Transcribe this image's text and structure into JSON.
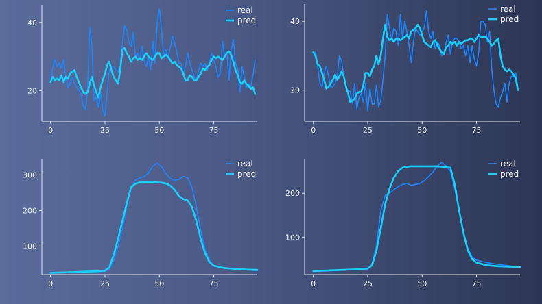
{
  "colors": {
    "real": "#1c86ff",
    "pred": "#1ad0ff",
    "axis": "#e8ecf6"
  },
  "chart_data": [
    {
      "type": "line",
      "xlim": [
        -4,
        95
      ],
      "ylim": [
        11,
        45
      ],
      "xticks": [
        0,
        25,
        50,
        75
      ],
      "yticks": [
        20,
        40
      ],
      "legend": {
        "position": "top-right",
        "entries": [
          "real",
          "pred"
        ]
      },
      "grid": false,
      "series": [
        {
          "name": "real",
          "values": [
            22.5,
            27,
            29,
            27,
            28,
            26.5,
            29,
            24,
            21,
            22,
            24,
            22,
            21,
            20,
            19,
            15.5,
            14.5,
            20,
            38.5,
            34,
            17,
            18,
            15,
            19.5,
            14.5,
            12.5,
            19.5,
            26,
            27,
            27,
            26,
            25.5,
            27,
            34,
            39,
            38,
            34,
            33,
            37,
            30,
            31,
            29,
            33,
            29,
            27,
            30,
            26,
            34.5,
            28,
            40,
            44,
            38,
            30,
            32,
            29.5,
            32.5,
            36,
            34,
            31.5,
            28,
            28,
            24.5,
            27,
            31,
            28,
            26,
            24,
            23,
            26,
            28,
            27,
            28,
            26,
            28,
            31,
            29,
            27,
            24,
            25,
            34.5,
            30,
            31,
            23,
            32,
            35,
            28,
            26.5,
            19.5,
            27,
            24,
            21,
            22,
            21,
            24.5,
            29
          ]
        },
        {
          "name": "pred",
          "values": [
            22.5,
            24,
            23,
            23.5,
            23,
            24.5,
            22.5,
            24,
            23.5,
            25,
            25.5,
            26,
            24,
            22.5,
            21,
            19.5,
            19,
            19.5,
            22,
            24,
            21.5,
            19.5,
            18,
            21,
            23,
            25,
            27.5,
            28.5,
            26,
            24,
            23,
            22,
            26,
            32,
            32.5,
            31,
            30,
            28.5,
            29.5,
            30,
            29,
            29.5,
            29,
            30,
            31,
            30,
            29.5,
            29,
            30,
            31,
            31,
            29.5,
            30,
            30.5,
            30,
            29,
            28,
            28.5,
            27.5,
            27,
            26.5,
            25,
            23,
            23,
            24.5,
            24,
            23,
            23,
            24,
            25,
            26.5,
            26,
            27,
            27.5,
            29,
            30,
            29.5,
            30,
            29.5,
            29,
            30,
            31,
            31.5,
            30.5,
            28.5,
            26,
            24.5,
            22.5,
            22,
            23,
            22,
            21.5,
            20.5,
            21,
            19
          ]
        }
      ]
    },
    {
      "type": "line",
      "xlim": [
        -4,
        95
      ],
      "ylim": [
        11,
        45
      ],
      "xticks": [
        0,
        25,
        50,
        75
      ],
      "yticks": [
        20,
        40
      ],
      "legend": {
        "position": "top-right",
        "entries": [
          "real",
          "pred"
        ]
      },
      "grid": false,
      "series": [
        {
          "name": "real",
          "values": [
            31,
            31,
            27,
            22,
            21,
            25,
            27,
            24,
            21,
            21,
            22,
            24,
            30,
            28.5,
            24,
            21,
            20,
            19.5,
            16,
            22,
            14.5,
            18,
            19,
            16.5,
            22,
            14,
            20.5,
            16,
            16,
            21.5,
            15,
            17,
            23,
            30,
            42,
            38,
            34.5,
            38,
            37,
            33,
            42,
            35,
            40,
            37,
            33,
            28,
            34,
            38,
            37,
            36,
            37,
            38,
            43,
            37,
            35,
            37,
            32,
            34,
            33,
            30,
            30.5,
            34,
            36,
            30.5,
            34,
            35,
            35,
            34,
            32,
            33,
            30,
            33,
            28,
            33,
            29,
            27,
            31,
            40,
            40,
            39,
            34,
            37,
            26,
            20,
            16,
            15,
            18,
            19.5,
            22,
            16.5,
            22,
            24,
            24,
            25,
            21
          ]
        },
        {
          "name": "pred",
          "values": [
            31,
            30,
            27.5,
            27,
            25,
            23,
            20.5,
            21,
            22,
            23,
            24.5,
            23,
            24,
            25.5,
            24,
            21,
            19,
            16.5,
            17,
            17.5,
            19,
            19.5,
            19.5,
            21.5,
            25,
            25,
            24,
            26,
            27,
            30,
            27.5,
            30,
            35,
            39,
            35.5,
            34.5,
            35,
            34,
            35,
            35,
            34.5,
            35,
            35.5,
            36,
            35,
            37,
            37.5,
            38,
            39,
            38,
            36,
            34,
            33.5,
            33,
            32.5,
            34,
            34.5,
            33,
            32,
            31,
            30.5,
            32.5,
            33,
            34,
            33.5,
            34,
            33,
            34,
            33.5,
            34,
            34.5,
            34.5,
            35,
            35,
            34,
            35,
            36,
            35.5,
            35.5,
            35.5,
            35,
            34,
            33,
            33.5,
            34.5,
            35,
            30,
            27,
            26,
            25.5,
            26,
            25.5,
            24.5,
            23.5,
            20
          ]
        }
      ]
    },
    {
      "type": "line",
      "xlim": [
        -4,
        95
      ],
      "ylim": [
        20,
        345
      ],
      "xticks": [
        0,
        25,
        50,
        75
      ],
      "yticks": [
        100,
        200,
        300
      ],
      "legend": {
        "position": "top-right",
        "entries": [
          "real",
          "pred"
        ]
      },
      "grid": false,
      "series": [
        {
          "name": "real",
          "x": [
            0,
            5,
            10,
            15,
            20,
            25,
            27,
            29,
            31,
            33,
            35,
            37,
            39,
            41,
            43,
            45,
            47,
            49,
            51,
            53,
            55,
            57,
            59,
            61,
            63,
            65,
            67,
            69,
            71,
            73,
            75,
            80,
            85,
            90,
            95
          ],
          "values": [
            24,
            25,
            26,
            27,
            28,
            29,
            35,
            60,
            100,
            150,
            210,
            265,
            285,
            292,
            295,
            305,
            325,
            333,
            323,
            304,
            290,
            285,
            287,
            296,
            292,
            265,
            210,
            145,
            90,
            60,
            44,
            38,
            35,
            33,
            31
          ]
        },
        {
          "name": "pred",
          "x": [
            0,
            5,
            10,
            15,
            20,
            25,
            27,
            29,
            31,
            33,
            35,
            37,
            39,
            41,
            43,
            45,
            47,
            49,
            51,
            53,
            55,
            57,
            59,
            61,
            63,
            65,
            67,
            69,
            71,
            73,
            75,
            80,
            85,
            90,
            95
          ],
          "values": [
            25,
            26,
            27,
            28,
            29,
            31,
            40,
            75,
            120,
            170,
            220,
            265,
            275,
            279,
            280,
            280,
            280,
            279,
            278,
            276,
            270,
            258,
            240,
            232,
            228,
            210,
            170,
            120,
            80,
            55,
            45,
            38,
            36,
            34,
            33
          ]
        }
      ]
    },
    {
      "type": "line",
      "xlim": [
        -4,
        95
      ],
      "ylim": [
        15,
        278
      ],
      "xticks": [
        0,
        25,
        50,
        75
      ],
      "yticks": [
        100,
        200
      ],
      "legend": {
        "position": "top-right",
        "entries": [
          "real",
          "pred"
        ]
      },
      "grid": false,
      "series": [
        {
          "name": "real",
          "x": [
            0,
            5,
            10,
            15,
            20,
            25,
            27,
            29,
            31,
            33,
            35,
            37,
            39,
            41,
            43,
            45,
            47,
            49,
            51,
            53,
            55,
            57,
            59,
            61,
            63,
            65,
            67,
            69,
            71,
            73,
            75,
            80,
            85,
            90,
            95
          ],
          "values": [
            22,
            23,
            24,
            25,
            26,
            27,
            40,
            80,
            160,
            195,
            200,
            208,
            215,
            220,
            222,
            218,
            220,
            222,
            228,
            238,
            248,
            262,
            270,
            262,
            250,
            210,
            160,
            110,
            75,
            55,
            48,
            42,
            38,
            35,
            32
          ]
        },
        {
          "name": "pred",
          "x": [
            0,
            5,
            10,
            15,
            20,
            25,
            27,
            29,
            31,
            33,
            35,
            37,
            39,
            41,
            43,
            45,
            47,
            49,
            51,
            53,
            55,
            57,
            59,
            61,
            63,
            65,
            67,
            69,
            71,
            73,
            75,
            80,
            85,
            90,
            95
          ],
          "values": [
            23,
            24,
            25,
            26,
            27,
            29,
            36,
            70,
            120,
            175,
            210,
            235,
            250,
            258,
            260,
            261,
            261,
            261,
            261,
            261,
            261,
            261,
            260,
            259,
            258,
            220,
            160,
            110,
            70,
            50,
            42,
            36,
            34,
            33,
            32
          ]
        }
      ]
    }
  ]
}
